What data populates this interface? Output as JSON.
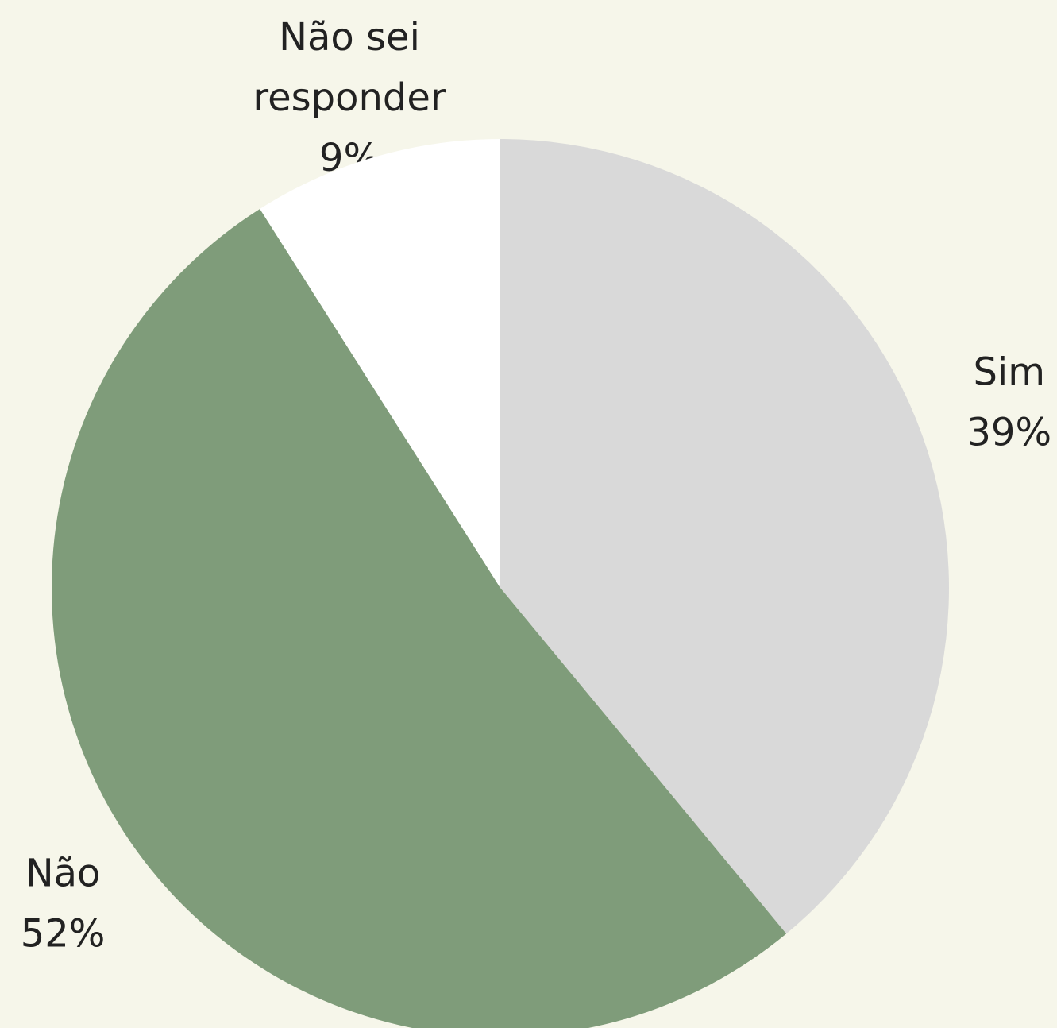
{
  "chart_data": {
    "type": "pie",
    "categories": [
      "Sim",
      "Não",
      "Não sei responder"
    ],
    "values": [
      39,
      52,
      9
    ],
    "value_labels": [
      "39%",
      "52%",
      "9%"
    ],
    "colors": [
      "#d9d9d9",
      "#7f9c7a",
      "#ffffff"
    ]
  }
}
